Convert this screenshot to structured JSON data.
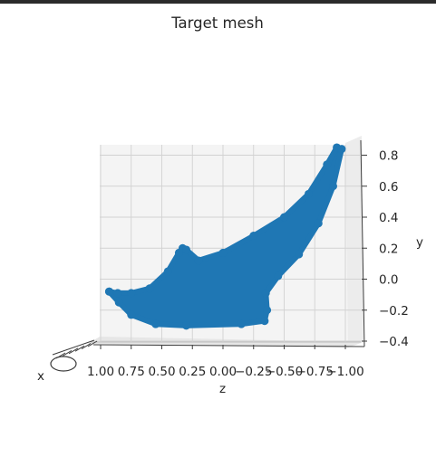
{
  "chart_data": {
    "type": "scatter",
    "title": "Target mesh",
    "xlabel": "x",
    "ylabel": "y",
    "zlabel": "z",
    "y_ticks": [
      "0.8",
      "0.6",
      "0.4",
      "0.2",
      "0.0",
      "−0.2",
      "−0.4"
    ],
    "z_ticks": [
      "1.00",
      "0.75",
      "0.50",
      "0.25",
      "0.00",
      "−0.25",
      "−0.50",
      "−0.75",
      "−1.00"
    ],
    "ylim": [
      -0.43,
      0.9
    ],
    "zlim": [
      1.0,
      -1.0
    ],
    "grid": true,
    "marker_color": "#1f77b4",
    "projection": "3d",
    "shape_outline_zy": [
      [
        0.93,
        -0.08
      ],
      [
        0.86,
        -0.09
      ],
      [
        0.75,
        -0.09
      ],
      [
        0.6,
        -0.06
      ],
      [
        0.45,
        0.05
      ],
      [
        0.36,
        0.17
      ],
      [
        0.33,
        0.2
      ],
      [
        0.3,
        0.19
      ],
      [
        0.2,
        0.12
      ],
      [
        0.0,
        0.17
      ],
      [
        -0.25,
        0.28
      ],
      [
        -0.5,
        0.4
      ],
      [
        -0.7,
        0.55
      ],
      [
        -0.85,
        0.74
      ],
      [
        -0.93,
        0.85
      ],
      [
        -0.97,
        0.84
      ],
      [
        -0.9,
        0.6
      ],
      [
        -0.78,
        0.36
      ],
      [
        -0.62,
        0.16
      ],
      [
        -0.45,
        0.02
      ],
      [
        -0.35,
        -0.09
      ],
      [
        -0.36,
        -0.2
      ],
      [
        -0.34,
        -0.27
      ],
      [
        -0.15,
        -0.29
      ],
      [
        0.3,
        -0.3
      ],
      [
        0.55,
        -0.29
      ],
      [
        0.75,
        -0.23
      ],
      [
        0.85,
        -0.15
      ],
      [
        0.93,
        -0.08
      ]
    ]
  }
}
